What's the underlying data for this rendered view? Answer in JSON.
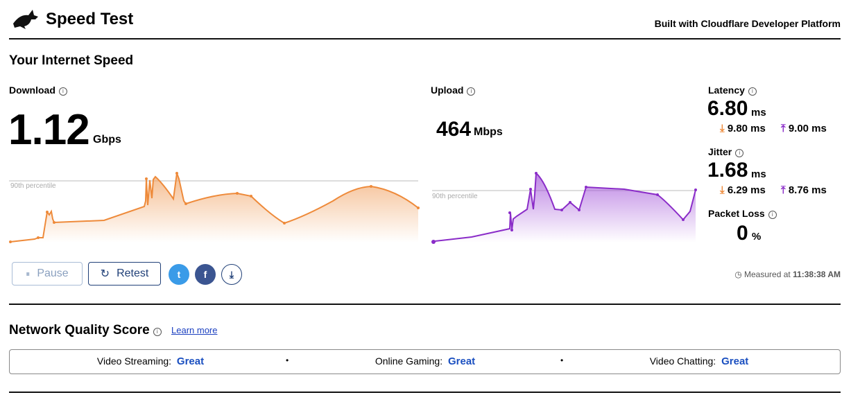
{
  "header": {
    "title": "Speed Test",
    "tagline": "Built with Cloudflare Developer Platform"
  },
  "speed": {
    "title": "Your Internet Speed",
    "download": {
      "label": "Download",
      "value": "1.12",
      "unit": "Gbps",
      "percentile": "90th percentile"
    },
    "upload": {
      "label": "Upload",
      "value": "464",
      "unit": "Mbps",
      "percentile": "90th percentile"
    },
    "latency": {
      "label": "Latency",
      "value": "6.80",
      "unit": "ms",
      "down": "9.80 ms",
      "up": "9.00 ms"
    },
    "jitter": {
      "label": "Jitter",
      "value": "1.68",
      "unit": "ms",
      "down": "6.29 ms",
      "up": "8.76 ms"
    },
    "packet_loss": {
      "label": "Packet Loss",
      "value": "0",
      "unit": "%"
    }
  },
  "actions": {
    "pause": "Pause",
    "retest": "Retest",
    "measured_label": "Measured at",
    "measured_time": "11:38:38 AM"
  },
  "quality": {
    "title": "Network Quality Score",
    "link": "Learn more",
    "items": [
      {
        "label": "Video Streaming:",
        "rating": "Great"
      },
      {
        "label": "Online Gaming:",
        "rating": "Great"
      },
      {
        "label": "Video Chatting:",
        "rating": "Great"
      }
    ]
  }
}
